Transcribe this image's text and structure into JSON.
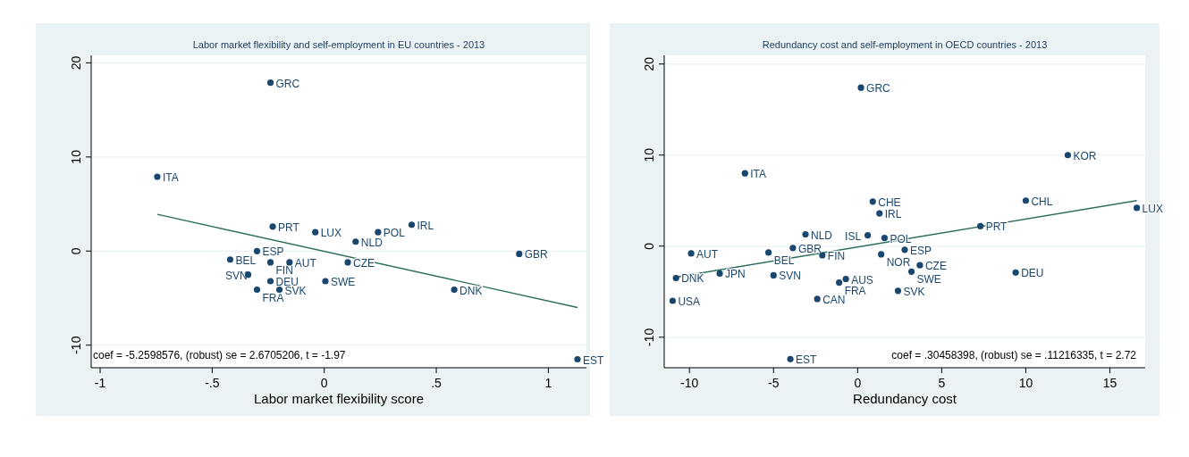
{
  "chart_data": [
    {
      "type": "scatter",
      "title": "Labor market flexibility and self-employment in EU countries - 2013",
      "xlabel": "Labor market flexibility score",
      "xlim": [
        -1.04,
        1.17
      ],
      "ylim": [
        -12.4,
        20.8
      ],
      "xticks": [
        -1,
        {
          "value": -0.5,
          "label": "-.5"
        },
        0,
        {
          "value": 0.5,
          "label": ".5"
        },
        1
      ],
      "yticks": [
        -10,
        0,
        10,
        20
      ],
      "grid": "y",
      "marker": "circle",
      "series": [
        {
          "color": "#1a476f",
          "x": [
            -0.24,
            -0.745,
            -0.23,
            0.39,
            -0.04,
            0.24,
            0.14,
            -0.3,
            0.87,
            -0.42,
            -0.24,
            -0.155,
            0.105,
            -0.34,
            -0.24,
            0.005,
            -0.3,
            -0.2,
            0.58,
            1.13
          ],
          "values": [
            17.9,
            7.9,
            2.6,
            2.8,
            2.0,
            2.0,
            1.0,
            0.0,
            -0.3,
            -0.9,
            -1.2,
            -1.2,
            -1.2,
            -2.5,
            -3.2,
            -3.2,
            -4.1,
            -4.1,
            -4.1,
            -11.5
          ]
        },
        {
          "type": "line",
          "color": "#2d6d5c",
          "x": [
            -0.745,
            1.13
          ],
          "values": [
            3.9,
            -6.0
          ],
          "marker": "none"
        }
      ],
      "annotations": [
        {
          "text": "GRC",
          "x": -0.24,
          "y": 17.9
        },
        {
          "text": "ITA",
          "x": -0.745,
          "y": 7.9
        },
        {
          "text": "PRT",
          "x": -0.23,
          "y": 2.6
        },
        {
          "text": "IRL",
          "x": 0.39,
          "y": 2.8
        },
        {
          "text": "LUX",
          "x": -0.04,
          "y": 2.0
        },
        {
          "text": "POL",
          "x": 0.24,
          "y": 2.0
        },
        {
          "text": "NLD",
          "x": 0.14,
          "y": 1.0
        },
        {
          "text": "ESP",
          "x": -0.3,
          "y": 0.0
        },
        {
          "text": "GBR",
          "x": 0.87,
          "y": -0.3
        },
        {
          "text": "BEL",
          "x": -0.42,
          "y": -0.9
        },
        {
          "text": "FIN",
          "x": -0.24,
          "y": -1.2
        },
        {
          "text": "AUT",
          "x": -0.155,
          "y": -1.2
        },
        {
          "text": "CZE",
          "x": 0.105,
          "y": -1.2
        },
        {
          "text": "SVN",
          "x": -0.34,
          "y": -2.5
        },
        {
          "text": "DEU",
          "x": -0.24,
          "y": -3.2
        },
        {
          "text": "SWE",
          "x": 0.005,
          "y": -3.2
        },
        {
          "text": "FRA",
          "x": -0.3,
          "y": -4.1
        },
        {
          "text": "SVK",
          "x": -0.2,
          "y": -4.1
        },
        {
          "text": "DNK",
          "x": 0.58,
          "y": -4.1
        },
        {
          "text": "EST",
          "x": 1.13,
          "y": -11.5
        },
        "coef = -5.2598576, (robust) se = 2.6705206, t = -1.97"
      ]
    },
    {
      "type": "scatter",
      "title": "Redundancy cost and self-employment in OECD countries - 2013",
      "xlabel": "Redundancy cost",
      "xlim": [
        -11.5,
        17.1
      ],
      "ylim": [
        -13.35,
        20.95
      ],
      "xticks": [
        -10,
        -5,
        0,
        5,
        10,
        15
      ],
      "yticks": [
        -10,
        0,
        10,
        20
      ],
      "grid": "y",
      "marker": "circle",
      "series": [
        {
          "color": "#1a476f",
          "x": [
            0.2,
            -6.7,
            12.5,
            0.9,
            10.0,
            1.3,
            16.6,
            7.3,
            -3.1,
            0.6,
            1.6,
            -9.9,
            -5.3,
            -3.85,
            -2.1,
            1.4,
            2.8,
            3.7,
            3.2,
            9.4,
            -10.8,
            -8.2,
            -5.0,
            -0.7,
            -1.1,
            2.4,
            -11.0,
            -2.4,
            -4.0
          ],
          "values": [
            17.4,
            8.0,
            10.0,
            4.9,
            5.0,
            3.6,
            4.2,
            2.2,
            1.3,
            1.2,
            0.9,
            -0.8,
            -0.7,
            -0.2,
            -1.0,
            -0.9,
            -0.4,
            -2.1,
            -2.8,
            -2.9,
            -3.5,
            -3.0,
            -3.2,
            -3.6,
            -4.0,
            -4.9,
            -6.0,
            -5.8,
            -12.4
          ]
        },
        {
          "type": "line",
          "color": "#2d6d5c",
          "x": [
            -10.8,
            16.6
          ],
          "values": [
            -3.4,
            5.0
          ],
          "marker": "none"
        }
      ],
      "annotations": [
        {
          "text": "GRC",
          "x": 0.2,
          "y": 17.4
        },
        {
          "text": "ITA",
          "x": -6.7,
          "y": 8.0
        },
        {
          "text": "KOR",
          "x": 12.5,
          "y": 10.0
        },
        {
          "text": "CHE",
          "x": 0.9,
          "y": 4.9
        },
        {
          "text": "CHL",
          "x": 10.0,
          "y": 5.0
        },
        {
          "text": "IRL",
          "x": 1.3,
          "y": 3.6
        },
        {
          "text": "LUX",
          "x": 16.6,
          "y": 4.2
        },
        {
          "text": "PRT",
          "x": 7.3,
          "y": 2.2
        },
        {
          "text": "NLD",
          "x": -3.1,
          "y": 1.3
        },
        {
          "text": "ISL",
          "x": 0.6,
          "y": 1.2
        },
        {
          "text": "POL",
          "x": 1.6,
          "y": 0.9
        },
        {
          "text": "AUT",
          "x": -9.9,
          "y": -0.8
        },
        {
          "text": "BEL",
          "x": -5.3,
          "y": -0.7
        },
        {
          "text": "GBR",
          "x": -3.85,
          "y": -0.2
        },
        {
          "text": "FIN",
          "x": -2.1,
          "y": -1.0
        },
        {
          "text": "NOR",
          "x": 1.4,
          "y": -0.9
        },
        {
          "text": "ESP",
          "x": 2.8,
          "y": -0.4
        },
        {
          "text": "CZE",
          "x": 3.7,
          "y": -2.1
        },
        {
          "text": "SWE",
          "x": 3.2,
          "y": -2.8
        },
        {
          "text": "DEU",
          "x": 9.4,
          "y": -2.9
        },
        {
          "text": "DNK",
          "x": -10.8,
          "y": -3.5
        },
        {
          "text": "JPN",
          "x": -8.2,
          "y": -3.0
        },
        {
          "text": "SVN",
          "x": -5.0,
          "y": -3.2
        },
        {
          "text": "AUS",
          "x": -0.7,
          "y": -3.6
        },
        {
          "text": "FRA",
          "x": -1.1,
          "y": -4.0
        },
        {
          "text": "SVK",
          "x": 2.4,
          "y": -4.9
        },
        {
          "text": "USA",
          "x": -11.0,
          "y": -6.0
        },
        {
          "text": "CAN",
          "x": -2.4,
          "y": -5.8
        },
        {
          "text": "EST",
          "x": -4.0,
          "y": -12.4
        },
        "coef = .30458398, (robust) se = .11216335, t = 2.72"
      ]
    }
  ]
}
